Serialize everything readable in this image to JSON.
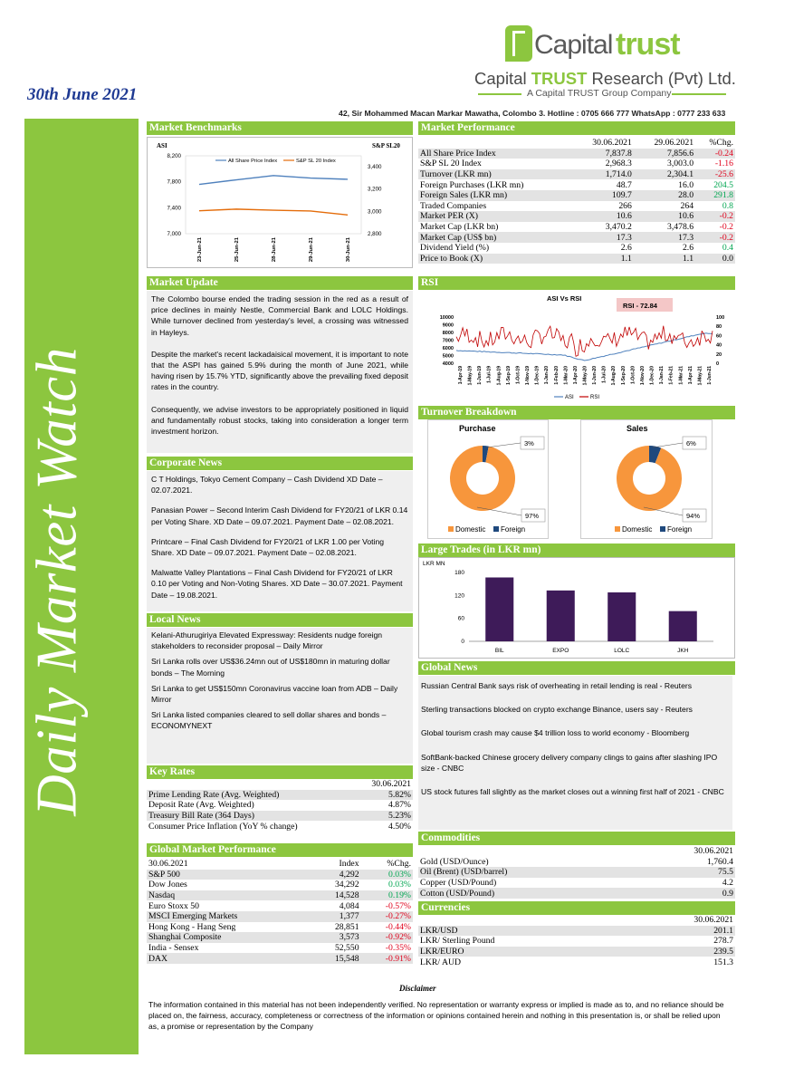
{
  "header": {
    "date": "30th June 2021",
    "brand_capital": "Capital",
    "brand_trust": "trust",
    "research_name_pre": "Capital ",
    "research_name_trust": "TRUST",
    "research_name_post": " Research (Pvt) Ltd.",
    "group": "A Capital TRUST Group Company",
    "address": "42, Sir Mohammed Macan Markar Mawatha, Colombo 3. Hotline : 0705 666 777 WhatsApp : 0777 233 633",
    "sidebar_title": "Daily Market Watch"
  },
  "colors": {
    "green": "#8cc63f",
    "orange": "#f7963c",
    "navy": "#1f497d",
    "purple": "#3e1b59",
    "neg": "#e0001b",
    "pos": "#00a651"
  },
  "benchmarks": {
    "title": "Market Benchmarks",
    "left_label": "ASI",
    "right_label": "S&P SL20"
  },
  "benchmarks_chart": {
    "type": "line",
    "x": [
      "23-Jun-21",
      "25-Jun-21",
      "28-Jun-21",
      "29-Jun-21",
      "30-Jun-21"
    ],
    "series": [
      {
        "name": "All Share Price Index",
        "values": [
          7760,
          7830,
          7895,
          7857,
          7838
        ]
      },
      {
        "name": "S&P SL 20 Index",
        "values": [
          3005,
          3020,
          3010,
          3003,
          2968
        ]
      }
    ],
    "left_ticks": [
      "8,200",
      "7,800",
      "7,400",
      "7,000"
    ],
    "right_ticks": [
      "3,400",
      "3,200",
      "3,000",
      "2,800"
    ],
    "left_ylim": [
      7000,
      8200
    ],
    "right_ylim": [
      2800,
      3400
    ],
    "legend": "top"
  },
  "performance": {
    "title": "Market Performance",
    "cols": [
      "30.06.2021",
      "29.06.2021",
      "%Chg."
    ],
    "rows": [
      {
        "label": "All Share Price Index",
        "a": "7,837.8",
        "b": "7,856.6",
        "c": "-0.24",
        "neg": true
      },
      {
        "label": "S&P SL 20 Index",
        "a": "2,968.3",
        "b": "3,003.0",
        "c": "-1.16",
        "neg": true
      },
      {
        "label": "Turnover (LKR mn)",
        "a": "1,714.0",
        "b": "2,304.1",
        "c": "-25.6",
        "neg": true
      },
      {
        "label": "Foreign Purchases (LKR mn)",
        "a": "48.7",
        "b": "16.0",
        "c": "204.5",
        "neg": false
      },
      {
        "label": "Foreign Sales (LKR mn)",
        "a": "109.7",
        "b": "28.0",
        "c": "291.8",
        "neg": false
      },
      {
        "label": "Traded Companies",
        "a": "266",
        "b": "264",
        "c": "0.8",
        "neg": false
      },
      {
        "label": "Market PER (X)",
        "a": "10.6",
        "b": "10.6",
        "c": "-0.2",
        "neg": true
      },
      {
        "label": "Market Cap (LKR bn)",
        "a": "3,470.2",
        "b": "3,478.6",
        "c": "-0.2",
        "neg": true
      },
      {
        "label": "Market Cap (US$ bn)",
        "a": "17.3",
        "b": "17.3",
        "c": "-0.2",
        "neg": true
      },
      {
        "label": "Dividend Yield (%)",
        "a": "2.6",
        "b": "2.6",
        "c": "0.4",
        "neg": false
      },
      {
        "label": "Price to Book (X)",
        "a": "1.1",
        "b": "1.1",
        "c": "0.0",
        "neg": false,
        "plain": true
      }
    ]
  },
  "update": {
    "title": "Market Update",
    "p1": "The Colombo bourse ended the trading session in the red as a result of price declines in mainly Nestle, Commercial Bank and LOLC Holdings. While turnover declined from yesterday's level, a crossing was witnessed in Hayleys.",
    "p2": "Despite the market's recent lackadaisical movement, it is important to note that the ASPI has gained 5.9% during the month of June 2021, while having risen by 15.7% YTD, significantly above the prevailing fixed deposit rates in the country.",
    "p3": "Consequently, we advise investors to be appropriately positioned in liquid and fundamentally robust stocks, taking into consideration a longer term investment horizon."
  },
  "rsi": {
    "title": "RSI",
    "chart_title": "ASI Vs RSI",
    "badge": "RSI - 72.84",
    "left_ticks": [
      "10000",
      "9000",
      "8000",
      "7000",
      "6000",
      "5000",
      "4000"
    ],
    "right_ticks": [
      "100",
      "80",
      "60",
      "40",
      "20",
      "0"
    ],
    "x_labels": [
      "1-Apr-19",
      "1-May-19",
      "1-Jun-19",
      "1-Jul-19",
      "1-Aug-19",
      "1-Sep-19",
      "1-Oct-19",
      "1-Nov-19",
      "1-Dec-19",
      "1-Jan-20",
      "1-Feb-20",
      "1-Mar-20",
      "1-Apr-20",
      "1-May-20",
      "1-Jun-20",
      "1-Jul-20",
      "1-Aug-20",
      "1-Sep-20",
      "1-Oct-20",
      "1-Nov-20",
      "1-Dec-20",
      "1-Jan-21",
      "1-Feb-21",
      "1-Mar-21",
      "1-Apr-21",
      "1-May-21",
      "1-Jun-21"
    ],
    "legend": [
      "ASI",
      "RSI"
    ]
  },
  "turnover": {
    "title": "Turnover Breakdown",
    "purchase": {
      "title": "Purchase",
      "domestic": 97,
      "foreign": 3,
      "dom_label": "97%",
      "for_label": "3%"
    },
    "sales": {
      "title": "Sales",
      "domestic": 94,
      "foreign": 6,
      "dom_label": "94%",
      "for_label": "6%"
    },
    "legend_domestic": "Domestic",
    "legend_foreign": "Foreign"
  },
  "corporate": {
    "title": "Corporate News",
    "items": [
      "C T Holdings, Tokyo Cement Company – Cash Dividend XD Date – 02.07.2021.",
      "Panasian Power – Second Interim Cash Dividend for FY20/21 of LKR 0.14 per Voting Share. XD Date – 09.07.2021. Payment Date – 02.08.2021.",
      "Printcare – Final Cash Dividend for FY20/21 of LKR 1.00 per Voting Share. XD Date – 09.07.2021. Payment Date – 02.08.2021.",
      "Malwatte Valley Plantations – Final Cash Dividend for FY20/21 of LKR 0.10 per Voting and Non-Voting Shares. XD Date – 30.07.2021. Payment Date – 19.08.2021."
    ]
  },
  "large_trades": {
    "title": "Large Trades (in LKR mn)",
    "unit": "LKR MN"
  },
  "chart_data": {
    "type": "bar",
    "categories": [
      "BIL",
      "EXPO",
      "LOLC",
      "JKH"
    ],
    "values": [
      167,
      133,
      128,
      79
    ],
    "ylabel": "LKR MN",
    "ylim": [
      0,
      180
    ],
    "ticks": [
      "180",
      "120",
      "60",
      "0"
    ]
  },
  "local": {
    "title": "Local News",
    "items": [
      "Kelani-Athurugiriya Elevated Expressway: Residents nudge foreign stakeholders to reconsider proposal – Daily Mirror",
      "Sri Lanka rolls over US$36.24mn out of US$180mn in maturing dollar bonds – The Morning",
      "Sri Lanka to get US$150mn Coronavirus vaccine loan from ADB – Daily Mirror",
      "Sri Lanka listed companies cleared to sell dollar shares and bonds – ECONOMYNEXT"
    ]
  },
  "global_news": {
    "title": "Global News",
    "items": [
      "Russian Central Bank says risk of overheating in retail lending is real - Reuters",
      "Sterling transactions blocked on crypto exchange Binance, users say - Reuters",
      "Global tourism crash may cause $4 trillion loss to world economy - Bloomberg",
      "SoftBank-backed Chinese grocery delivery company clings to gains after slashing IPO size - CNBC",
      "US stock futures fall slightly as the market closes out a winning first half of 2021 - CNBC"
    ]
  },
  "key_rates": {
    "title": "Key Rates",
    "date": "30.06.2021",
    "rows": [
      {
        "label": "Prime Lending Rate (Avg. Weighted)",
        "v": "5.82%"
      },
      {
        "label": "Deposit Rate (Avg. Weighted)",
        "v": "4.87%"
      },
      {
        "label": "Treasury Bill Rate (364 Days)",
        "v": "5.23%"
      },
      {
        "label": "Consumer Price Inflation (YoY % change)",
        "v": "4.50%"
      }
    ]
  },
  "global_perf": {
    "title": "Global Market Performance",
    "cols": [
      "30.06.2021",
      "Index",
      "%Chg."
    ],
    "rows": [
      {
        "label": "S&P 500",
        "i": "4,292",
        "c": "0.03%",
        "neg": false
      },
      {
        "label": "Dow Jones",
        "i": "34,292",
        "c": "0.03%",
        "neg": false
      },
      {
        "label": "Nasdaq",
        "i": "14,528",
        "c": "0.19%",
        "neg": false
      },
      {
        "label": "Euro Stoxx 50",
        "i": "4,084",
        "c": "-0.57%",
        "neg": true
      },
      {
        "label": "MSCI Emerging Markets",
        "i": "1,377",
        "c": "-0.27%",
        "neg": true
      },
      {
        "label": "Hong Kong - Hang Seng",
        "i": "28,851",
        "c": "-0.44%",
        "neg": true
      },
      {
        "label": "Shanghai Composite",
        "i": "3,573",
        "c": "-0.92%",
        "neg": true
      },
      {
        "label": "India - Sensex",
        "i": "52,550",
        "c": "-0.35%",
        "neg": true
      },
      {
        "label": "DAX",
        "i": "15,548",
        "c": "-0.91%",
        "neg": true
      }
    ]
  },
  "commodities": {
    "title": "Commodities",
    "date": "30.06.2021",
    "rows": [
      {
        "label": "Gold (USD/Ounce)",
        "v": "1,760.4"
      },
      {
        "label": "Oil (Brent) (USD/barrel)",
        "v": "75.5"
      },
      {
        "label": "Copper (USD/Pound)",
        "v": "4.2"
      },
      {
        "label": "Cotton (USD/Pound)",
        "v": "0.9"
      }
    ]
  },
  "currencies": {
    "title": "Currencies",
    "date": "30.06.2021",
    "rows": [
      {
        "label": "LKR/USD",
        "v": "201.1"
      },
      {
        "label": "LKR/ Sterling Pound",
        "v": "278.7"
      },
      {
        "label": "LKR/EURO",
        "v": "239.5"
      },
      {
        "label": "LKR/ AUD",
        "v": "151.3"
      }
    ]
  },
  "disclaimer": {
    "title": "Disclaimer",
    "text": "The information contained in this material has not been independently verified. No representation or warranty express or implied is made as to, and no reliance should be placed on, the fairness, accuracy, completeness or correctness of the information or opinions contained herein and nothing in this presentation is, or shall be relied upon as, a promise or representation by the Company"
  }
}
